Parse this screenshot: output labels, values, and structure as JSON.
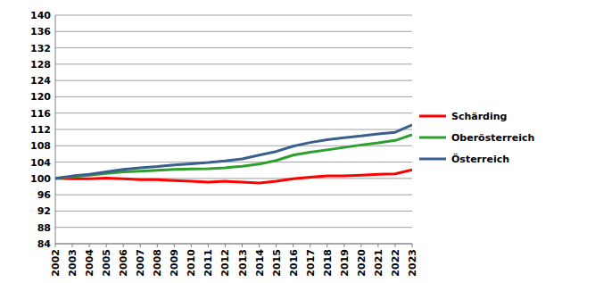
{
  "chart_data": {
    "type": "line",
    "categories": [
      "2002",
      "2003",
      "2004",
      "2005",
      "2006",
      "2007",
      "2008",
      "2009",
      "2010",
      "2011",
      "2012",
      "2013",
      "2014",
      "2015",
      "2016",
      "2017",
      "2018",
      "2019",
      "2020",
      "2021",
      "2022",
      "2023"
    ],
    "series": [
      {
        "name": "Schärding",
        "color": "#ff0000",
        "values": [
          100,
          99.9,
          99.9,
          100.1,
          99.9,
          99.7,
          99.7,
          99.5,
          99.3,
          99.1,
          99.3,
          99.1,
          98.9,
          99.3,
          99.9,
          100.3,
          100.6,
          100.6,
          100.8,
          101.0,
          101.1,
          102.1
        ]
      },
      {
        "name": "Oberösterreich",
        "color": "#2ca02c",
        "values": [
          100,
          100.4,
          100.8,
          101.2,
          101.6,
          101.8,
          102.0,
          102.2,
          102.3,
          102.4,
          102.6,
          103.0,
          103.5,
          104.4,
          105.7,
          106.4,
          107.0,
          107.6,
          108.2,
          108.7,
          109.3,
          110.7
        ]
      },
      {
        "name": "Österreich",
        "color": "#3a5f8f",
        "values": [
          100,
          100.6,
          101.0,
          101.6,
          102.2,
          102.6,
          102.9,
          103.3,
          103.6,
          103.9,
          104.3,
          104.8,
          105.7,
          106.6,
          107.9,
          108.8,
          109.5,
          110.0,
          110.4,
          110.9,
          111.3,
          113.1
        ]
      }
    ],
    "ylim": [
      84,
      140
    ],
    "yticks": [
      84,
      88,
      92,
      96,
      100,
      104,
      108,
      112,
      116,
      120,
      124,
      128,
      132,
      136,
      140
    ],
    "grid": true,
    "legend": "right"
  }
}
